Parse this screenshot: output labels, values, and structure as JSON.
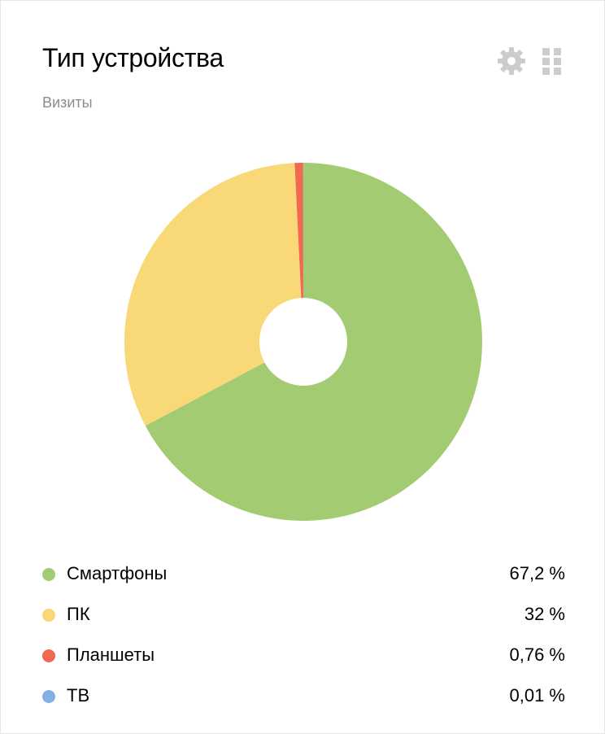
{
  "widget": {
    "title": "Тип устройства",
    "subtitle": "Визиты",
    "settings_icon": "gear-icon",
    "drag_icon": "drag-handle-icon",
    "icon_color": "#cccccc"
  },
  "chart_data": {
    "type": "pie",
    "title": "Тип устройства",
    "subtitle": "Визиты",
    "donut": true,
    "legend_position": "bottom",
    "slices": [
      {
        "label": "Смартфоны",
        "value": 67.2,
        "display": "67,2 %",
        "color": "#a3cb72"
      },
      {
        "label": "ПК",
        "value": 32,
        "display": "32 %",
        "color": "#f9d877"
      },
      {
        "label": "Планшеты",
        "value": 0.76,
        "display": "0,76 %",
        "color": "#ef6a50"
      },
      {
        "label": "ТВ",
        "value": 0.01,
        "display": "0,01 %",
        "color": "#82b2e4"
      }
    ]
  }
}
